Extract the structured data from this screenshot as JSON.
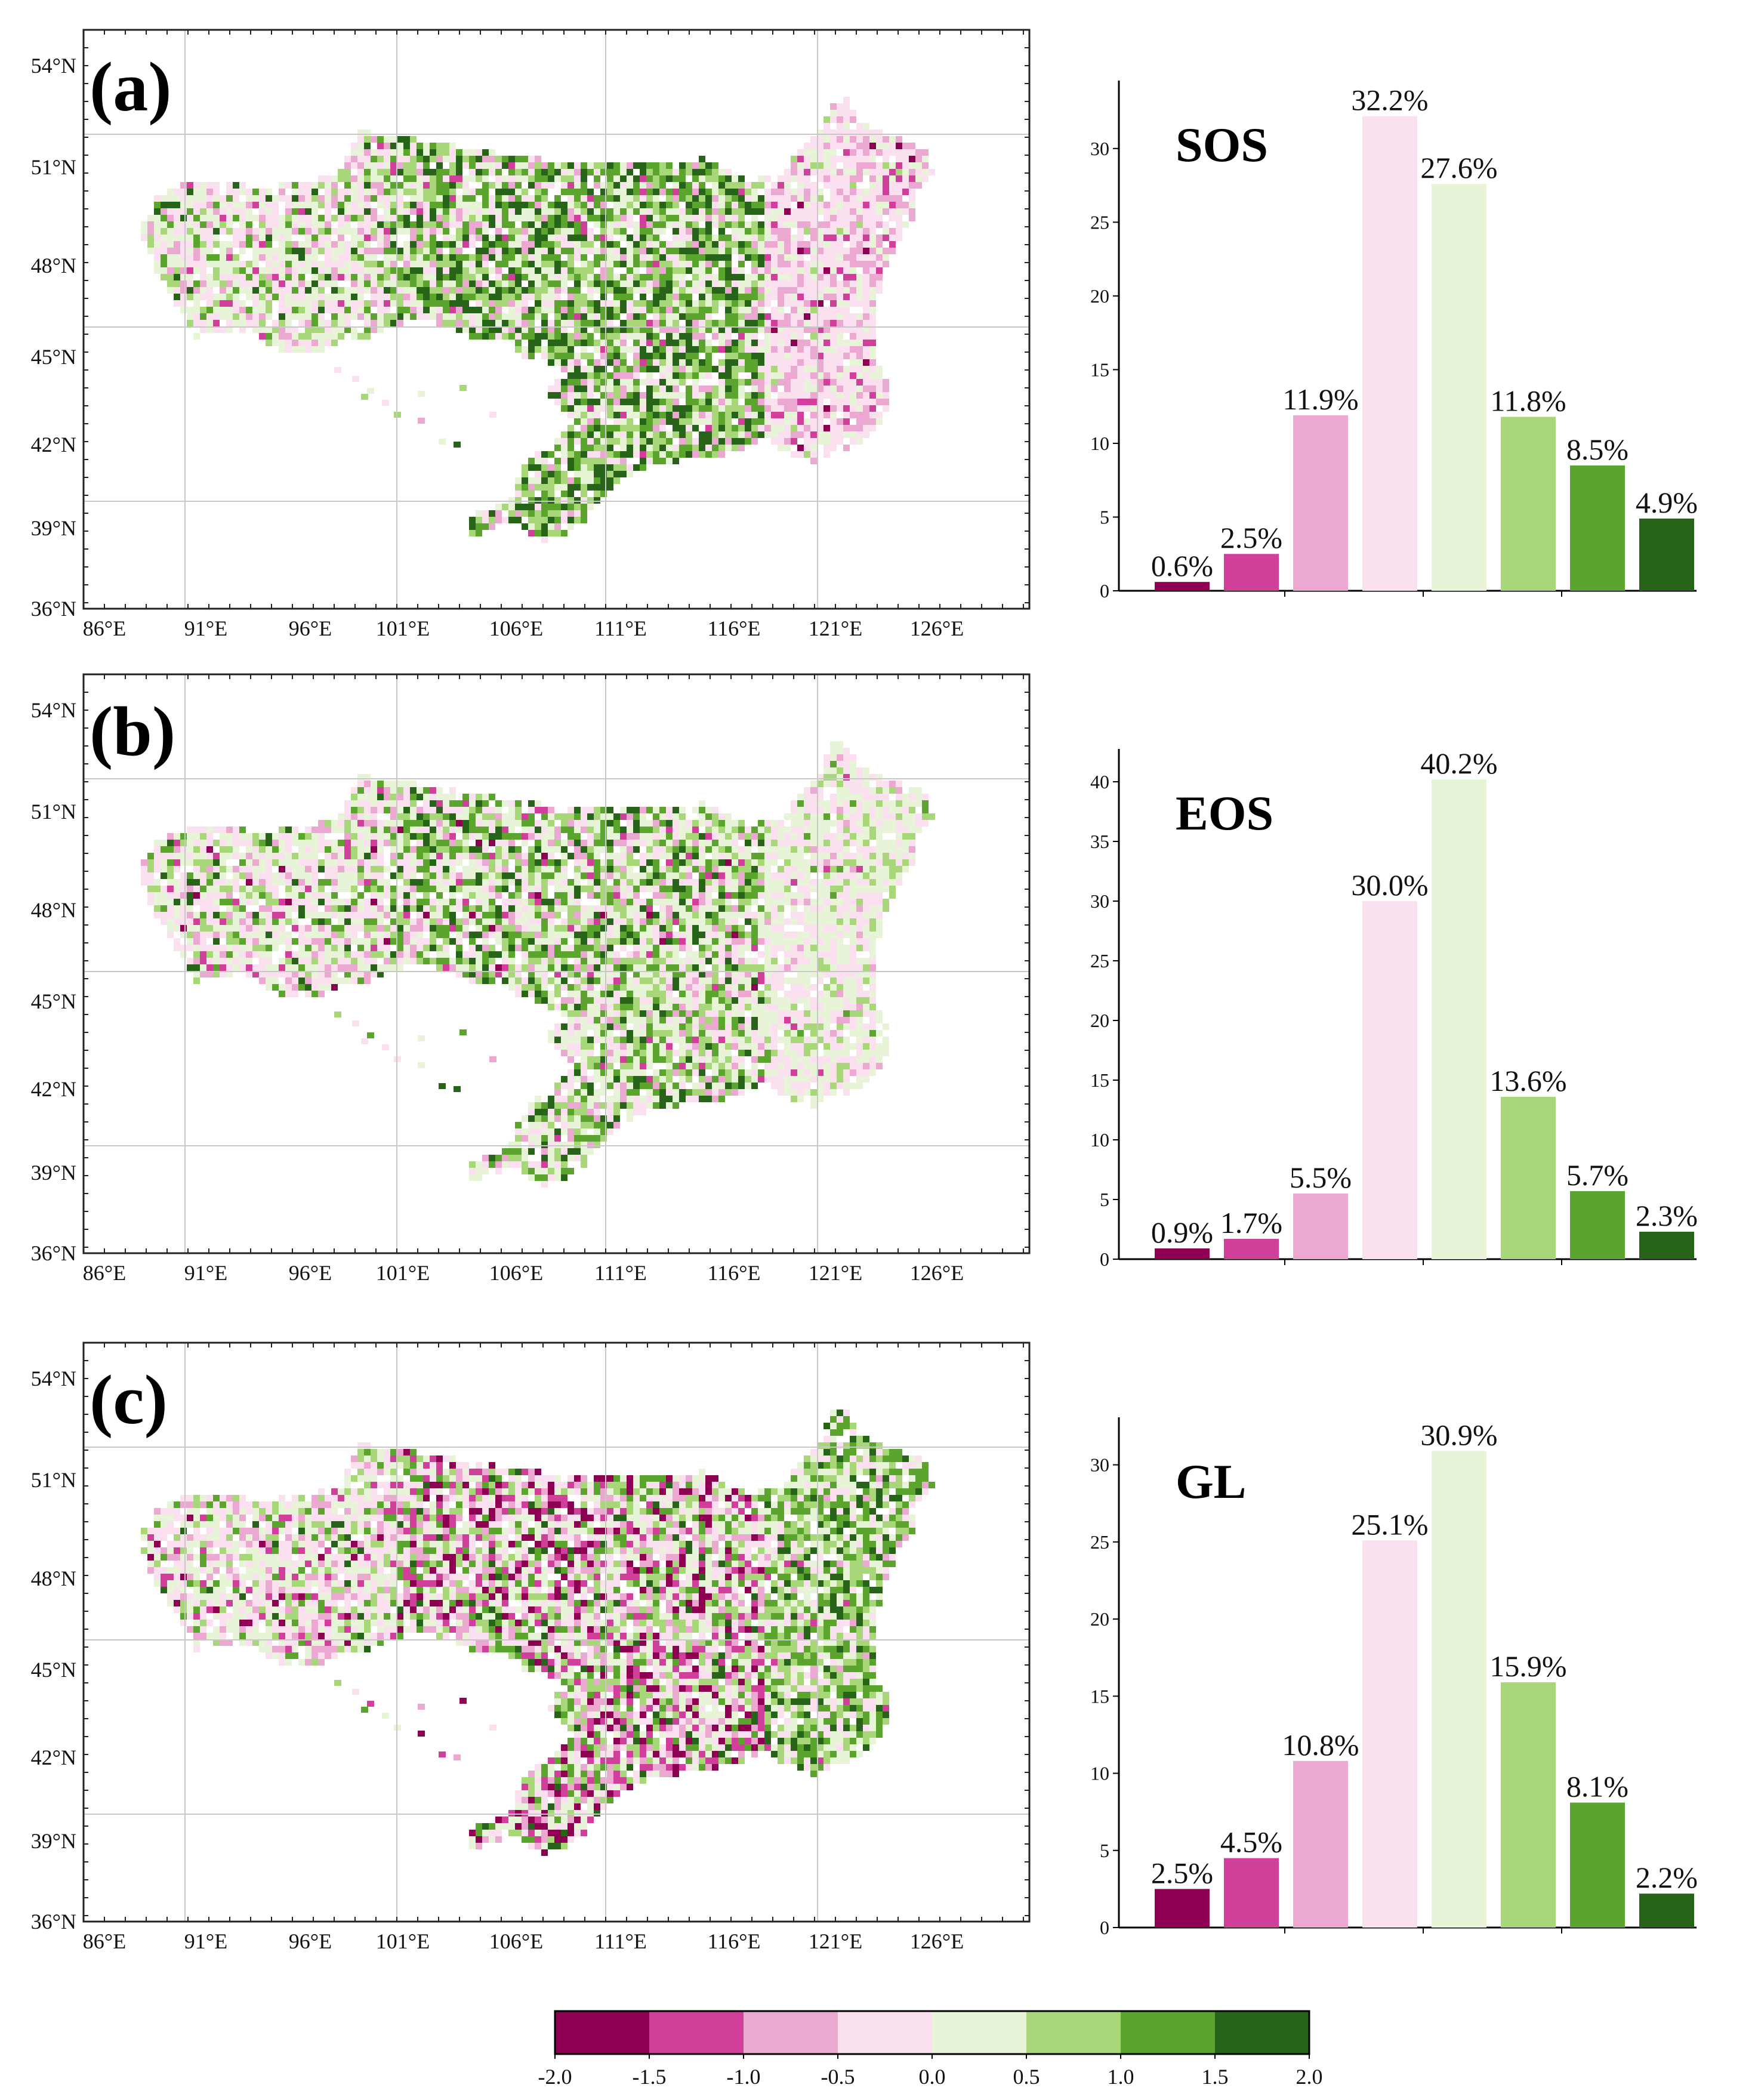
{
  "colors": {
    "classes": [
      "#8e0152",
      "#d0409a",
      "#eba9d2",
      "#fbe0ef",
      "#e8f4d8",
      "#a8d77a",
      "#5ba42d",
      "#276419"
    ],
    "grid": "#c8c8c8",
    "axis": "#222222"
  },
  "map_axes": {
    "lat_labels": [
      "54°N",
      "51°N",
      "48°N",
      "45°N",
      "42°N",
      "39°N",
      "36°N"
    ],
    "lon_labels": [
      "86°E",
      "91°E",
      "96°E",
      "101°E",
      "106°E",
      "111°E",
      "116°E",
      "121°E",
      "126°E"
    ]
  },
  "panels": [
    {
      "id": "a",
      "label": "(a)"
    },
    {
      "id": "b",
      "label": "(b)"
    },
    {
      "id": "c",
      "label": "(c)"
    }
  ],
  "chart_data": [
    {
      "type": "bar",
      "title": "SOS",
      "categories": [
        "-2.0 – -1.5",
        "-1.5 – -1.0",
        "-1.0 – -0.5",
        "-0.5 – 0.0",
        "0.0 – 0.5",
        "0.5 – 1.0",
        "1.0 – 1.5",
        "1.5 – 2.0"
      ],
      "values": [
        0.6,
        2.5,
        11.9,
        32.2,
        27.6,
        11.8,
        8.5,
        4.9
      ],
      "value_labels": [
        "0.6%",
        "2.5%",
        "11.9%",
        "32.2%",
        "27.6%",
        "11.8%",
        "8.5%",
        "4.9%"
      ],
      "ylim": [
        0,
        34
      ],
      "yticks": [
        0,
        5,
        10,
        15,
        20,
        25,
        30
      ],
      "xlabel": "",
      "ylabel": ""
    },
    {
      "type": "bar",
      "title": "EOS",
      "categories": [
        "-2.0 – -1.5",
        "-1.5 – -1.0",
        "-1.0 – -0.5",
        "-0.5 – 0.0",
        "0.0 – 0.5",
        "0.5 – 1.0",
        "1.0 – 1.5",
        "1.5 – 2.0"
      ],
      "values": [
        0.9,
        1.7,
        5.5,
        30.0,
        40.2,
        13.6,
        5.7,
        2.3
      ],
      "value_labels": [
        "0.9%",
        "1.7%",
        "5.5%",
        "30.0%",
        "40.2%",
        "13.6%",
        "5.7%",
        "2.3%"
      ],
      "ylim": [
        0,
        42
      ],
      "yticks": [
        0,
        5,
        10,
        15,
        20,
        25,
        30,
        35,
        40
      ],
      "xlabel": "",
      "ylabel": ""
    },
    {
      "type": "bar",
      "title": "GL",
      "categories": [
        "-2.0 – -1.5",
        "-1.5 – -1.0",
        "-1.0 – -0.5",
        "-0.5 – 0.0",
        "0.0 – 0.5",
        "0.5 – 1.0",
        "1.0 – 1.5",
        "1.5 – 2.0"
      ],
      "values": [
        2.5,
        4.5,
        10.8,
        25.1,
        30.9,
        15.9,
        8.1,
        2.2
      ],
      "value_labels": [
        "2.5%",
        "4.5%",
        "10.8%",
        "25.1%",
        "30.9%",
        "15.9%",
        "8.1%",
        "2.2%"
      ],
      "ylim": [
        0,
        32.5
      ],
      "yticks": [
        0,
        5,
        10,
        15,
        20,
        25,
        30
      ],
      "xlabel": "",
      "ylabel": ""
    }
  ],
  "colorbar": {
    "ticks": [
      "-2.0",
      "-1.5",
      "-1.0",
      "-0.5",
      "0.0",
      "0.5",
      "1.0",
      "1.5",
      "2.0"
    ]
  }
}
